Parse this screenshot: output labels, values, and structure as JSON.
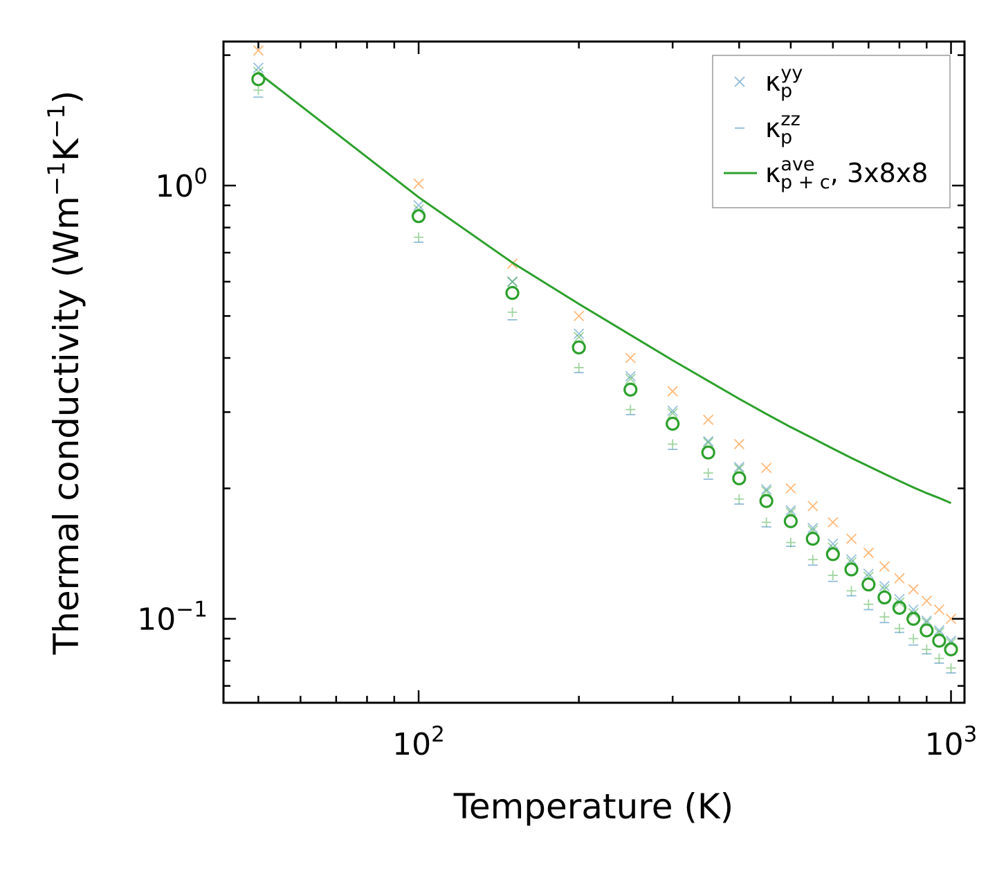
{
  "chart_data": {
    "type": "scatter",
    "title": "",
    "xlabel": "Temperature (K)",
    "ylabel": {
      "base": "Thermal conductivity (Wm",
      "exp1": "−1",
      "mid": "K",
      "exp2": "−1",
      "close": ")"
    },
    "xscale": "log",
    "yscale": "log",
    "xlim": [
      43,
      1060
    ],
    "ylim": [
      0.064,
      2.15
    ],
    "x_ticks": [
      {
        "base": "10",
        "exp": "2",
        "value": 100
      },
      {
        "base": "10",
        "exp": "3",
        "value": 1000
      }
    ],
    "y_ticks": [
      {
        "base": "10",
        "exp": "0",
        "value": 1
      },
      {
        "base": "10",
        "exp": "−1",
        "value": 0.1
      }
    ],
    "legend_position": "top-right",
    "legend": [
      {
        "key": "yy",
        "symbol": "κ",
        "sub": "p",
        "sup": "yy",
        "suffix": "",
        "marker": "x",
        "color": "#1f77b4"
      },
      {
        "key": "zz",
        "symbol": "κ",
        "sub": "p",
        "sup": "zz",
        "suffix": "",
        "marker": "_",
        "color": "#1f77b4"
      },
      {
        "key": "ave",
        "symbol": "κ",
        "sub": "p + c",
        "sup": "ave",
        "suffix": ", 3x8x8",
        "marker": "line",
        "color": "#2ca02c"
      }
    ],
    "x": [
      50,
      100,
      150,
      200,
      250,
      300,
      350,
      400,
      450,
      500,
      550,
      600,
      650,
      700,
      750,
      800,
      850,
      900,
      950,
      1000
    ],
    "series": [
      {
        "name": "xx (orange x)",
        "marker": "x",
        "color": "#ff7f0e",
        "alpha": 0.55,
        "values": [
          2.05,
          1.01,
          0.66,
          0.5,
          0.4,
          0.335,
          0.288,
          0.253,
          0.223,
          0.2,
          0.182,
          0.167,
          0.153,
          0.142,
          0.132,
          0.124,
          0.117,
          0.11,
          0.105,
          0.1
        ]
      },
      {
        "name": "yy (blue x)",
        "marker": "x",
        "color": "#1f77b4",
        "alpha": 0.45,
        "values": [
          1.87,
          0.9,
          0.6,
          0.455,
          0.363,
          0.302,
          0.257,
          0.224,
          0.199,
          0.178,
          0.162,
          0.149,
          0.137,
          0.127,
          0.119,
          0.111,
          0.105,
          0.099,
          0.094,
          0.089
        ]
      },
      {
        "name": "yy (green x)",
        "marker": "x",
        "color": "#2ca02c",
        "alpha": 0.45,
        "values": [
          1.83,
          0.88,
          0.6,
          0.447,
          0.358,
          0.298,
          0.255,
          0.222,
          0.197,
          0.176,
          0.16,
          0.146,
          0.135,
          0.125,
          0.117,
          0.109,
          0.103,
          0.098,
          0.093,
          0.088
        ]
      },
      {
        "name": "zz (blue -)",
        "marker": "_",
        "color": "#1f77b4",
        "alpha": 0.5,
        "values": [
          1.6,
          0.74,
          0.49,
          0.37,
          0.296,
          0.246,
          0.21,
          0.184,
          0.163,
          0.147,
          0.133,
          0.122,
          0.113,
          0.105,
          0.098,
          0.093,
          0.087,
          0.083,
          0.079,
          0.075
        ]
      },
      {
        "name": "zz (green +)",
        "marker": "+",
        "color": "#2ca02c",
        "alpha": 0.45,
        "values": [
          1.66,
          0.76,
          0.51,
          0.38,
          0.304,
          0.253,
          0.217,
          0.189,
          0.167,
          0.15,
          0.137,
          0.126,
          0.116,
          0.108,
          0.101,
          0.095,
          0.09,
          0.085,
          0.081,
          0.077
        ]
      },
      {
        "name": "ave (green o)",
        "marker": "o",
        "color": "#2ca02c",
        "alpha": 1.0,
        "values": [
          1.76,
          0.85,
          0.565,
          0.423,
          0.338,
          0.282,
          0.242,
          0.211,
          0.187,
          0.168,
          0.153,
          0.141,
          0.13,
          0.12,
          0.112,
          0.106,
          0.1,
          0.094,
          0.089,
          0.085
        ]
      }
    ],
    "line": {
      "name": "κ_p+c^ave, 3x8x8",
      "color": "#2ca02c",
      "x": [
        50,
        100,
        150,
        200,
        250,
        300,
        350,
        400,
        450,
        500,
        550,
        600,
        650,
        700,
        750,
        800,
        850,
        900,
        950,
        1000
      ],
      "values": [
        1.82,
        0.94,
        0.664,
        0.533,
        0.452,
        0.395,
        0.354,
        0.322,
        0.297,
        0.277,
        0.261,
        0.247,
        0.235,
        0.225,
        0.216,
        0.208,
        0.201,
        0.195,
        0.19,
        0.185
      ]
    }
  }
}
